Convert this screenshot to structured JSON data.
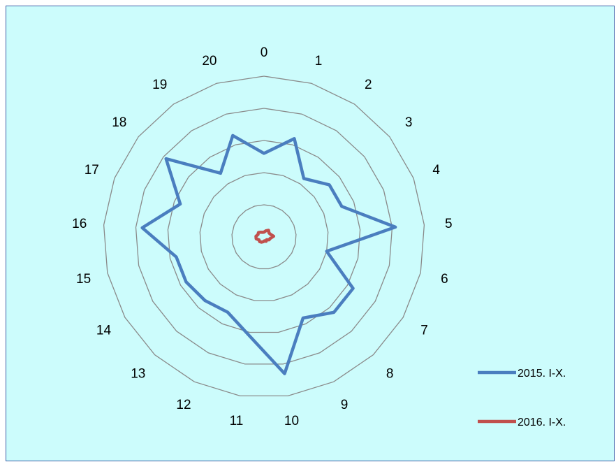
{
  "chart_data": {
    "type": "radar",
    "categories": [
      "0",
      "1",
      "2",
      "3",
      "4",
      "5",
      "6",
      "7",
      "8",
      "9",
      "10",
      "11",
      "12",
      "13",
      "14",
      "15",
      "16",
      "17",
      "18",
      "19",
      "20"
    ],
    "rlim": [
      0,
      5
    ],
    "ring_values": [
      1,
      2,
      3,
      4,
      5
    ],
    "grid": true,
    "legend_position": "right",
    "series": [
      {
        "name": "2015. I-X.",
        "color": "#4a7ebf",
        "values": [
          2.6,
          3.2,
          2.2,
          2.6,
          2.6,
          4.1,
          2.0,
          3.2,
          3.2,
          2.8,
          4.3,
          3.1,
          2.6,
          2.7,
          2.8,
          2.8,
          3.8,
          2.8,
          3.9,
          2.4,
          3.3
        ]
      },
      {
        "name": "2016. I-X.",
        "color": "#c0504d",
        "values": [
          0.15,
          0.2,
          0.25,
          0.2,
          0.22,
          0.3,
          0.2,
          0.18,
          0.12,
          0.15,
          0.12,
          0.15,
          0.18,
          0.2,
          0.18,
          0.25,
          0.25,
          0.2,
          0.22,
          0.18,
          0.15
        ]
      }
    ]
  }
}
